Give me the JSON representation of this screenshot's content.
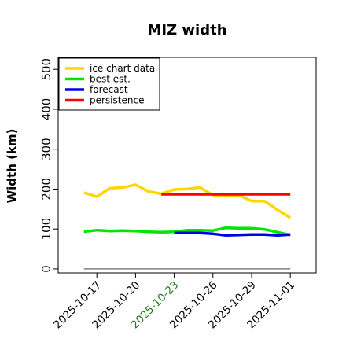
{
  "chart_data": {
    "type": "line",
    "title": "MIZ width",
    "xlabel": "",
    "ylabel": "Width (km)",
    "ylim": [
      -10,
      530
    ],
    "xlim": [
      "2025-10-14",
      "2025-11-03"
    ],
    "yticks": [
      "0",
      "100",
      "200",
      "300",
      "400",
      "500"
    ],
    "xticks": [
      "2025-10-17",
      "2025-10-20",
      "2025-10-23",
      "2025-10-26",
      "2025-10-29",
      "2025-11-01"
    ],
    "highlight_tick": "2025-10-23",
    "highlight_color": "#1f7a1f",
    "grid": false,
    "legend_position": "upper-left",
    "series": [
      {
        "name": "ice chart data",
        "color": "#ffd500",
        "points": [
          [
            "2025-10-16",
            191
          ],
          [
            "2025-10-17",
            181
          ],
          [
            "2025-10-18",
            202
          ],
          [
            "2025-10-19",
            204
          ],
          [
            "2025-10-20",
            211
          ],
          [
            "2025-10-21",
            194
          ],
          [
            "2025-10-22",
            188
          ],
          [
            "2025-10-23",
            199
          ],
          [
            "2025-10-24",
            200
          ],
          [
            "2025-10-25",
            204
          ],
          [
            "2025-10-26",
            185
          ],
          [
            "2025-10-27",
            182
          ],
          [
            "2025-10-28",
            185
          ],
          [
            "2025-10-29",
            170
          ],
          [
            "2025-10-30",
            170
          ],
          [
            "2025-10-31",
            148
          ],
          [
            "2025-11-01",
            128
          ]
        ]
      },
      {
        "name": "best est.",
        "color": "#00e600",
        "points": [
          [
            "2025-10-16",
            93
          ],
          [
            "2025-10-17",
            97
          ],
          [
            "2025-10-18",
            95
          ],
          [
            "2025-10-19",
            96
          ],
          [
            "2025-10-20",
            95
          ],
          [
            "2025-10-21",
            93
          ],
          [
            "2025-10-22",
            92
          ],
          [
            "2025-10-23",
            93
          ],
          [
            "2025-10-24",
            97
          ],
          [
            "2025-10-25",
            97
          ],
          [
            "2025-10-26",
            96
          ],
          [
            "2025-10-27",
            103
          ],
          [
            "2025-10-28",
            102
          ],
          [
            "2025-10-29",
            102
          ],
          [
            "2025-10-30",
            99
          ],
          [
            "2025-10-31",
            92
          ],
          [
            "2025-11-01",
            85
          ]
        ]
      },
      {
        "name": "forecast",
        "color": "#0000e6",
        "points": [
          [
            "2025-10-23",
            90
          ],
          [
            "2025-10-24",
            90
          ],
          [
            "2025-10-25",
            90
          ],
          [
            "2025-10-26",
            88
          ],
          [
            "2025-10-27",
            84
          ],
          [
            "2025-10-28",
            85
          ],
          [
            "2025-10-29",
            86
          ],
          [
            "2025-10-30",
            86
          ],
          [
            "2025-10-31",
            84
          ],
          [
            "2025-11-01",
            86
          ]
        ]
      },
      {
        "name": "persistence",
        "color": "#ff0000",
        "points": [
          [
            "2025-10-22",
            187
          ],
          [
            "2025-11-01",
            187
          ]
        ]
      }
    ],
    "reference_line": {
      "y": 0,
      "from": "2025-10-16",
      "to": "2025-11-01",
      "color": "#808080"
    }
  }
}
